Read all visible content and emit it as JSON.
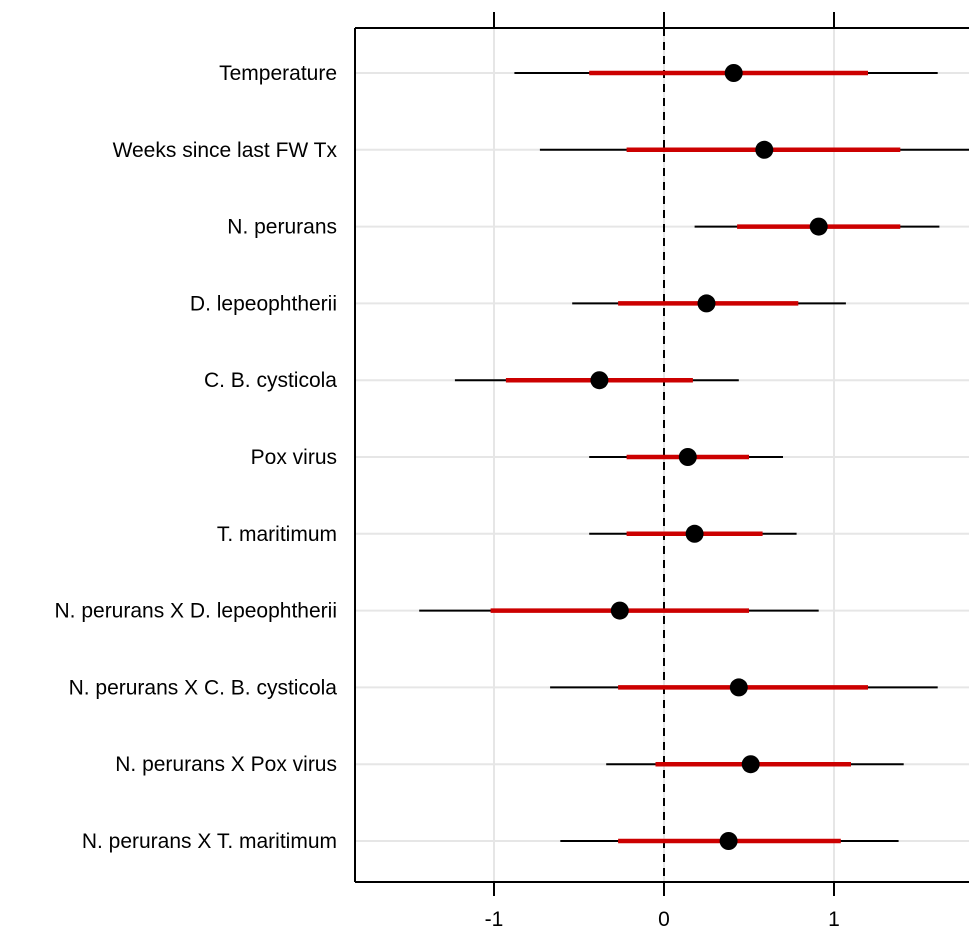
{
  "chart_data": {
    "type": "forest",
    "title": "",
    "xlabel": "",
    "ylabel": "",
    "xlim": [
      -1.82,
      1.8
    ],
    "x_ticks": [
      {
        "value": -1,
        "label": "-1"
      },
      {
        "value": 0,
        "label": "0"
      },
      {
        "value": 1,
        "label": "1"
      }
    ],
    "reference_line": {
      "value": 0,
      "style": "dashed"
    },
    "grid": true,
    "colors": {
      "inner_interval": "#cc0000",
      "outer_interval": "#000000",
      "point": "#000000",
      "grid": "#e6e6e6"
    },
    "rows": [
      {
        "label": "Temperature",
        "estimate": 0.41,
        "inner": [
          -0.44,
          1.2
        ],
        "outer": [
          -0.88,
          1.61
        ]
      },
      {
        "label": "Weeks since last FW Tx",
        "estimate": 0.59,
        "inner": [
          -0.22,
          1.39
        ],
        "outer": [
          -0.73,
          1.8
        ]
      },
      {
        "label": "N. perurans",
        "estimate": 0.91,
        "inner": [
          0.43,
          1.39
        ],
        "outer": [
          0.18,
          1.62
        ]
      },
      {
        "label": "D. lepeophtherii",
        "estimate": 0.25,
        "inner": [
          -0.27,
          0.79
        ],
        "outer": [
          -0.54,
          1.07
        ]
      },
      {
        "label": "C. B. cysticola",
        "estimate": -0.38,
        "inner": [
          -0.93,
          0.17
        ],
        "outer": [
          -1.23,
          0.44
        ]
      },
      {
        "label": "Pox virus",
        "estimate": 0.14,
        "inner": [
          -0.22,
          0.5
        ],
        "outer": [
          -0.44,
          0.7
        ]
      },
      {
        "label": "T. maritimum",
        "estimate": 0.18,
        "inner": [
          -0.22,
          0.58
        ],
        "outer": [
          -0.44,
          0.78
        ]
      },
      {
        "label": "N. perurans X D. lepeophtherii",
        "estimate": -0.26,
        "inner": [
          -1.02,
          0.5
        ],
        "outer": [
          -1.44,
          0.91
        ]
      },
      {
        "label": "N. perurans X C. B. cysticola",
        "estimate": 0.44,
        "inner": [
          -0.27,
          1.2
        ],
        "outer": [
          -0.67,
          1.61
        ]
      },
      {
        "label": "N. perurans X Pox virus",
        "estimate": 0.51,
        "inner": [
          -0.05,
          1.1
        ],
        "outer": [
          -0.34,
          1.41
        ]
      },
      {
        "label": "N. perurans X T. maritimum",
        "estimate": 0.38,
        "inner": [
          -0.27,
          1.04
        ],
        "outer": [
          -0.61,
          1.38
        ]
      }
    ]
  }
}
